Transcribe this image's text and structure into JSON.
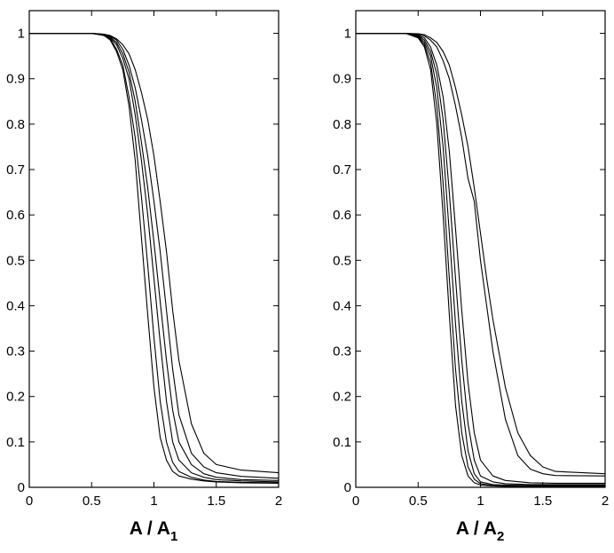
{
  "chart_data": [
    {
      "type": "line",
      "xlabel_main": "A / A",
      "xlabel_sub": "1",
      "ylabel": "",
      "xlim": [
        0,
        2
      ],
      "ylim": [
        0,
        1.05
      ],
      "xticks": [
        "0",
        "0.5",
        "1",
        "1.5",
        "2"
      ],
      "yticks": [
        "0",
        "0.1",
        "0.2",
        "0.3",
        "0.4",
        "0.5",
        "0.6",
        "0.7",
        "0.8",
        "0.9",
        "1"
      ],
      "grid": false,
      "series": [
        {
          "x": [
            0,
            0.5,
            0.6,
            0.65,
            0.7,
            0.75,
            0.8,
            0.85,
            0.9,
            0.95,
            1.0,
            1.05,
            1.1,
            1.15,
            1.2,
            1.3,
            1.4,
            1.5,
            1.7,
            2.0
          ],
          "y": [
            1,
            1,
            0.995,
            0.985,
            0.96,
            0.92,
            0.84,
            0.72,
            0.55,
            0.38,
            0.22,
            0.11,
            0.06,
            0.035,
            0.025,
            0.018,
            0.014,
            0.012,
            0.01,
            0.009
          ]
        },
        {
          "x": [
            0,
            0.5,
            0.6,
            0.65,
            0.7,
            0.75,
            0.8,
            0.85,
            0.9,
            0.95,
            1.0,
            1.05,
            1.1,
            1.15,
            1.2,
            1.3,
            1.4,
            1.5,
            1.7,
            2.0
          ],
          "y": [
            1,
            1,
            0.996,
            0.988,
            0.965,
            0.93,
            0.86,
            0.77,
            0.64,
            0.49,
            0.33,
            0.19,
            0.1,
            0.055,
            0.035,
            0.022,
            0.016,
            0.013,
            0.011,
            0.01
          ]
        },
        {
          "x": [
            0,
            0.5,
            0.6,
            0.65,
            0.7,
            0.75,
            0.8,
            0.85,
            0.9,
            0.95,
            1.0,
            1.05,
            1.1,
            1.15,
            1.2,
            1.3,
            1.4,
            1.5,
            1.7,
            2.0
          ],
          "y": [
            1,
            1,
            0.997,
            0.99,
            0.975,
            0.945,
            0.9,
            0.82,
            0.72,
            0.6,
            0.46,
            0.32,
            0.19,
            0.1,
            0.06,
            0.032,
            0.022,
            0.017,
            0.014,
            0.012
          ]
        },
        {
          "x": [
            0,
            0.5,
            0.6,
            0.65,
            0.7,
            0.75,
            0.8,
            0.85,
            0.9,
            0.95,
            1.0,
            1.05,
            1.1,
            1.15,
            1.2,
            1.3,
            1.4,
            1.5,
            1.7,
            2.0
          ],
          "y": [
            1,
            1,
            0.997,
            0.992,
            0.98,
            0.955,
            0.915,
            0.85,
            0.76,
            0.66,
            0.54,
            0.41,
            0.28,
            0.17,
            0.1,
            0.05,
            0.03,
            0.022,
            0.017,
            0.015
          ]
        },
        {
          "x": [
            0,
            0.5,
            0.6,
            0.65,
            0.7,
            0.75,
            0.8,
            0.85,
            0.9,
            0.95,
            1.0,
            1.05,
            1.1,
            1.15,
            1.2,
            1.3,
            1.4,
            1.5,
            1.7,
            2.0
          ],
          "y": [
            1,
            1,
            0.998,
            0.994,
            0.985,
            0.965,
            0.93,
            0.88,
            0.81,
            0.73,
            0.63,
            0.52,
            0.39,
            0.26,
            0.16,
            0.075,
            0.045,
            0.032,
            0.024,
            0.02
          ]
        },
        {
          "x": [
            0,
            0.5,
            0.6,
            0.65,
            0.7,
            0.75,
            0.8,
            0.85,
            0.9,
            0.95,
            1.0,
            1.05,
            1.1,
            1.15,
            1.2,
            1.3,
            1.4,
            1.5,
            1.7,
            2.0
          ],
          "y": [
            1,
            1,
            0.998,
            0.995,
            0.988,
            0.975,
            0.955,
            0.92,
            0.87,
            0.81,
            0.73,
            0.63,
            0.52,
            0.39,
            0.28,
            0.14,
            0.075,
            0.05,
            0.038,
            0.032
          ]
        }
      ]
    },
    {
      "type": "line",
      "xlabel_main": "A / A",
      "xlabel_sub": "2",
      "ylabel": "",
      "xlim": [
        0,
        2
      ],
      "ylim": [
        0,
        1.05
      ],
      "xticks": [
        "0",
        "0.5",
        "1",
        "1.5",
        "2"
      ],
      "yticks": [
        "0",
        "0.1",
        "0.2",
        "0.3",
        "0.4",
        "0.5",
        "0.6",
        "0.7",
        "0.8",
        "0.9",
        "1"
      ],
      "grid": false,
      "series": [
        {
          "x": [
            0,
            0.4,
            0.5,
            0.55,
            0.6,
            0.65,
            0.7,
            0.75,
            0.8,
            0.85,
            0.9,
            0.95,
            1.0,
            1.1,
            1.2,
            1.4,
            1.6,
            2.0
          ],
          "y": [
            1,
            1,
            0.99,
            0.97,
            0.92,
            0.8,
            0.6,
            0.38,
            0.18,
            0.07,
            0.025,
            0.01,
            0.005,
            0.003,
            0.002,
            0.002,
            0.002,
            0.002
          ]
        },
        {
          "x": [
            0,
            0.4,
            0.5,
            0.55,
            0.6,
            0.65,
            0.7,
            0.75,
            0.8,
            0.85,
            0.9,
            0.95,
            1.0,
            1.1,
            1.2,
            1.4,
            1.6,
            2.0
          ],
          "y": [
            1,
            1,
            0.992,
            0.975,
            0.935,
            0.84,
            0.67,
            0.46,
            0.26,
            0.12,
            0.045,
            0.018,
            0.008,
            0.004,
            0.003,
            0.003,
            0.003,
            0.003
          ]
        },
        {
          "x": [
            0,
            0.4,
            0.5,
            0.55,
            0.6,
            0.65,
            0.7,
            0.75,
            0.8,
            0.85,
            0.9,
            0.95,
            1.0,
            1.1,
            1.2,
            1.4,
            1.6,
            2.0
          ],
          "y": [
            1,
            1,
            0.994,
            0.98,
            0.95,
            0.88,
            0.75,
            0.56,
            0.36,
            0.19,
            0.08,
            0.03,
            0.012,
            0.006,
            0.005,
            0.004,
            0.004,
            0.004
          ]
        },
        {
          "x": [
            0,
            0.4,
            0.5,
            0.55,
            0.6,
            0.65,
            0.7,
            0.75,
            0.8,
            0.85,
            0.9,
            0.95,
            1.0,
            1.1,
            1.2,
            1.4,
            1.6,
            2.0
          ],
          "y": [
            1,
            1,
            0.995,
            0.985,
            0.96,
            0.91,
            0.81,
            0.65,
            0.46,
            0.28,
            0.14,
            0.06,
            0.025,
            0.012,
            0.008,
            0.006,
            0.006,
            0.006
          ]
        },
        {
          "x": [
            0,
            0.4,
            0.5,
            0.55,
            0.6,
            0.65,
            0.7,
            0.75,
            0.8,
            0.85,
            0.9,
            0.95,
            1.0,
            1.1,
            1.2,
            1.4,
            1.6,
            2.0
          ],
          "y": [
            1,
            1,
            0.996,
            0.99,
            0.97,
            0.93,
            0.86,
            0.74,
            0.57,
            0.39,
            0.23,
            0.12,
            0.06,
            0.025,
            0.015,
            0.01,
            0.009,
            0.009
          ]
        },
        {
          "x": [
            0,
            0.4,
            0.5,
            0.55,
            0.6,
            0.65,
            0.7,
            0.75,
            0.8,
            0.85,
            0.9,
            0.95,
            1.0,
            1.05,
            1.1,
            1.2,
            1.3,
            1.4,
            1.5,
            1.6,
            2.0
          ],
          "y": [
            1,
            1,
            0.998,
            0.994,
            0.985,
            0.97,
            0.94,
            0.9,
            0.84,
            0.77,
            0.68,
            0.63,
            0.5,
            0.4,
            0.3,
            0.15,
            0.07,
            0.04,
            0.03,
            0.026,
            0.025
          ]
        },
        {
          "x": [
            0,
            0.4,
            0.5,
            0.55,
            0.6,
            0.65,
            0.7,
            0.75,
            0.8,
            0.85,
            0.9,
            0.95,
            1.0,
            1.05,
            1.1,
            1.2,
            1.3,
            1.4,
            1.5,
            1.6,
            2.0
          ],
          "y": [
            1,
            1,
            0.999,
            0.997,
            0.99,
            0.98,
            0.96,
            0.93,
            0.88,
            0.82,
            0.75,
            0.66,
            0.56,
            0.46,
            0.37,
            0.22,
            0.12,
            0.07,
            0.045,
            0.035,
            0.03
          ]
        }
      ]
    }
  ]
}
